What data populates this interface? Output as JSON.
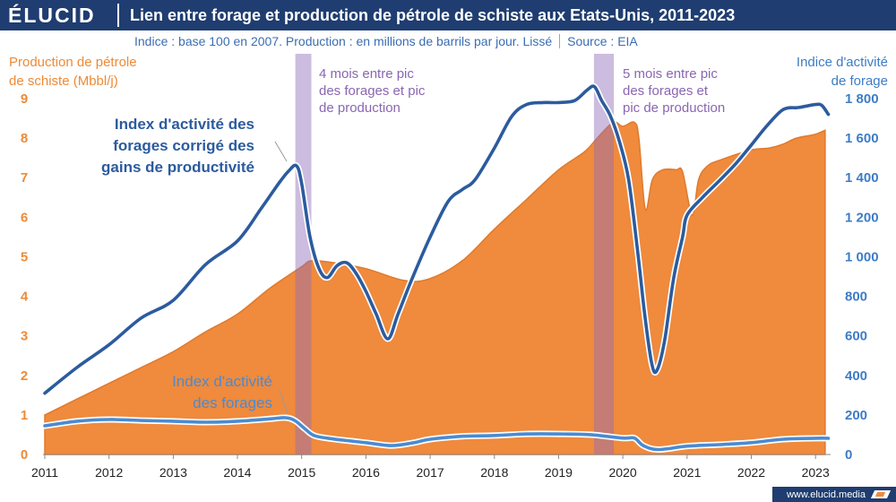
{
  "header": {
    "logo": "ÉLUCID"
  },
  "footer": {
    "url": "www.elucid.media",
    "icon": "elucid-logo-icon"
  },
  "colors": {
    "header_bg": "#1f3d70",
    "band": "#8d6bb8",
    "band_text": "#8a66b2",
    "left_axis": "#ee8a36",
    "right_axis": "#3d7cc6",
    "production_edge": "#e07a2c",
    "axis_line": "#8a8a8a"
  },
  "chart_data": {
    "type": "line",
    "title": "Lien entre forage et production de pétrole de schiste aux Etats-Unis, 2011-2023",
    "subtitle": "Indice : base 100 en 2007. Production : en millions de barrils par jour. Lissé",
    "source": "Source : EIA",
    "grid": false,
    "xlim": [
      2011,
      2023.2
    ],
    "x_ticks": [
      "2011",
      "2012",
      "2013",
      "2014",
      "2015",
      "2016",
      "2017",
      "2018",
      "2019",
      "2020",
      "2021",
      "2022",
      "2023"
    ],
    "y_left": {
      "label": [
        "Production de pétrole",
        "de schiste (Mbbl/j)"
      ],
      "lim": [
        0,
        9
      ],
      "ticks": [
        "0",
        "1",
        "2",
        "3",
        "4",
        "5",
        "6",
        "7",
        "8",
        "9"
      ]
    },
    "y_right": {
      "label": [
        "Indice d'activité",
        "de forage"
      ],
      "lim": [
        0,
        1800
      ],
      "ticks": [
        "0",
        "200",
        "400",
        "600",
        "800",
        "1 000",
        "1 200",
        "1 400",
        "1 600",
        "1 800"
      ]
    },
    "series": [
      {
        "style": "area",
        "axis": "left",
        "color": "#f08a3c",
        "x": [
          2011,
          2011.5,
          2012,
          2012.5,
          2013,
          2013.5,
          2014,
          2014.5,
          2015,
          2015.15,
          2015.5,
          2016,
          2016.6,
          2017,
          2017.5,
          2018,
          2018.5,
          2019,
          2019.4,
          2019.6,
          2019.85,
          2020,
          2020.18,
          2020.25,
          2020.35,
          2020.46,
          2020.62,
          2020.83,
          2020.93,
          2021.08,
          2021.18,
          2021.32,
          2021.52,
          2022,
          2022.28,
          2022.5,
          2022.7,
          2023,
          2023.15
        ],
        "y": [
          1.0,
          1.4,
          1.8,
          2.2,
          2.6,
          3.1,
          3.55,
          4.2,
          4.75,
          4.9,
          4.85,
          4.7,
          4.4,
          4.45,
          4.9,
          5.7,
          6.45,
          7.2,
          7.65,
          8.0,
          8.4,
          8.3,
          8.4,
          8.0,
          6.2,
          6.95,
          7.2,
          7.2,
          7.15,
          6.05,
          6.95,
          7.3,
          7.45,
          7.7,
          7.75,
          7.85,
          8.0,
          8.1,
          8.2
        ]
      },
      {
        "style": "line",
        "axis": "right",
        "color": "#2c5b9e",
        "name": [
          "Index d'activité des",
          "forages corrigé des",
          "gains de productivité"
        ],
        "x": [
          2011,
          2011.5,
          2012,
          2012.5,
          2013,
          2013.5,
          2014,
          2014.36,
          2014.64,
          2014.8,
          2014.92,
          2015.0,
          2015.13,
          2015.27,
          2015.4,
          2015.55,
          2015.7,
          2015.85,
          2016,
          2016.16,
          2016.34,
          2016.5,
          2016.72,
          2017,
          2017.28,
          2017.5,
          2017.7,
          2018,
          2018.27,
          2018.5,
          2018.76,
          2019,
          2019.25,
          2019.45,
          2019.56,
          2019.67,
          2019.81,
          2019.95,
          2020.09,
          2020.23,
          2020.34,
          2020.45,
          2020.53,
          2020.65,
          2020.79,
          2020.93,
          2021,
          2021.24,
          2021.52,
          2021.77,
          2022,
          2022.25,
          2022.5,
          2022.74,
          2023,
          2023.1,
          2023.2
        ],
        "y": [
          310,
          440,
          555,
          690,
          780,
          960,
          1080,
          1240,
          1370,
          1435,
          1460,
          1370,
          1100,
          940,
          895,
          955,
          970,
          915,
          825,
          710,
          585,
          710,
          890,
          1100,
          1280,
          1340,
          1390,
          1550,
          1710,
          1770,
          1780,
          1780,
          1790,
          1845,
          1860,
          1790,
          1710,
          1580,
          1390,
          1030,
          710,
          460,
          425,
          575,
          890,
          1100,
          1210,
          1300,
          1390,
          1475,
          1565,
          1665,
          1745,
          1755,
          1770,
          1765,
          1720
        ]
      },
      {
        "style": "line",
        "axis": "right",
        "color": "#4a8bd2",
        "name": [
          "Index d'activité",
          "des forages"
        ],
        "x": [
          2011,
          2011.5,
          2012,
          2012.5,
          2013,
          2013.5,
          2014,
          2014.5,
          2014.75,
          2014.9,
          2015.05,
          2015.2,
          2015.5,
          2016,
          2016.4,
          2016.75,
          2017,
          2017.5,
          2018,
          2018.5,
          2019,
          2019.5,
          2020,
          2020.18,
          2020.32,
          2020.55,
          2021,
          2021.5,
          2022,
          2022.5,
          2023,
          2023.2
        ],
        "y": [
          145,
          168,
          177,
          172,
          168,
          163,
          168,
          180,
          186,
          170,
          130,
          95,
          78,
          60,
          45,
          60,
          77,
          92,
          96,
          104,
          104,
          100,
          83,
          83,
          45,
          25,
          42,
          50,
          60,
          77,
          82,
          82
        ]
      }
    ],
    "highlight_bands": [
      {
        "from": 2014.9,
        "to": 2015.15,
        "label": [
          "4 mois entre pic",
          "des forages et pic",
          "de production"
        ]
      },
      {
        "from": 2019.55,
        "to": 2019.86,
        "label": [
          "5 mois entre pic",
          "des forages et",
          "pic de production"
        ]
      }
    ]
  }
}
